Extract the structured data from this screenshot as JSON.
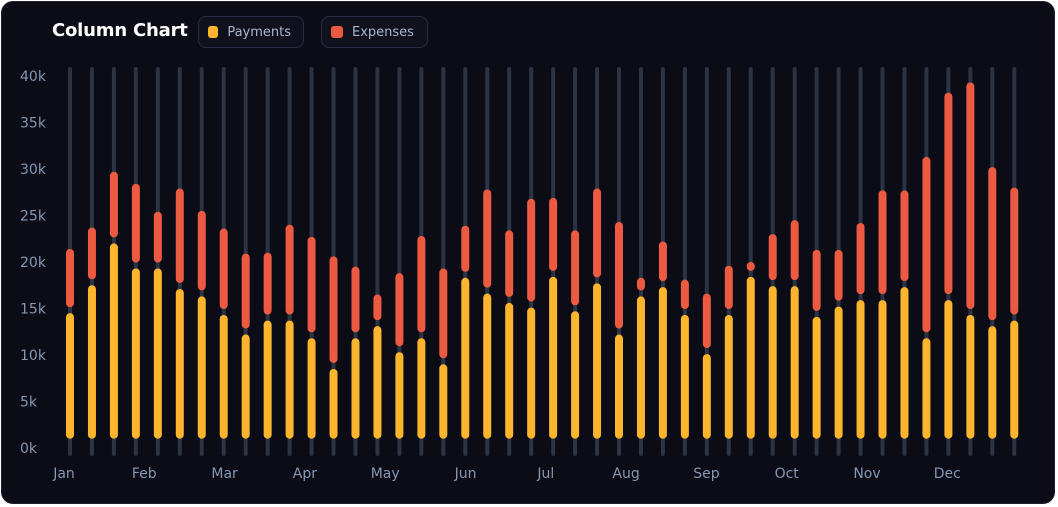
{
  "title": "Column Chart",
  "legend": [
    {
      "label": "Payments",
      "color": "#FDB52D"
    },
    {
      "label": "Expenses",
      "color": "#EC5A41"
    }
  ],
  "colors": {
    "background": "#0c0c16",
    "track": "#2a3444",
    "tick_text": "#8497b3"
  },
  "chart_data": {
    "type": "bar",
    "stacked": true,
    "ylim": [
      0,
      40000
    ],
    "y_ticks": [
      "0k",
      "5k",
      "10k",
      "15k",
      "20k",
      "25k",
      "30k",
      "35k",
      "40k"
    ],
    "x_tick_labels": [
      "Jan",
      "Feb",
      "Mar",
      "Apr",
      "May",
      "Jun",
      "Jul",
      "Aug",
      "Sep",
      "Oct",
      "Nov",
      "Dec"
    ],
    "series": [
      {
        "name": "Payments",
        "values": [
          14500,
          17500,
          22000,
          19300,
          19300,
          17100,
          16300,
          14300,
          12200,
          13700,
          13700,
          11800,
          8500,
          11800,
          13100,
          10300,
          11800,
          9000,
          18300,
          16600,
          15600,
          15100,
          18400,
          14700,
          17700,
          12200,
          16300,
          17300,
          14300,
          10100,
          14300,
          18400,
          17400,
          17400,
          14100,
          15200,
          15900,
          15900,
          17300,
          11800,
          15900,
          14300,
          13100,
          13700
        ]
      },
      {
        "name": "Expenses",
        "values": [
          6900,
          6200,
          7700,
          9100,
          6100,
          10800,
          9200,
          9300,
          8700,
          7300,
          10300,
          10900,
          12100,
          7700,
          3400,
          8500,
          11000,
          10300,
          5600,
          11200,
          7800,
          11700,
          8500,
          8700,
          10200,
          12100,
          2000,
          4900,
          3800,
          6500,
          5300,
          1600,
          5600,
          7100,
          7200,
          6100,
          8300,
          11800,
          10400,
          19500,
          22300,
          25000,
          17100,
          14300
        ]
      }
    ]
  }
}
